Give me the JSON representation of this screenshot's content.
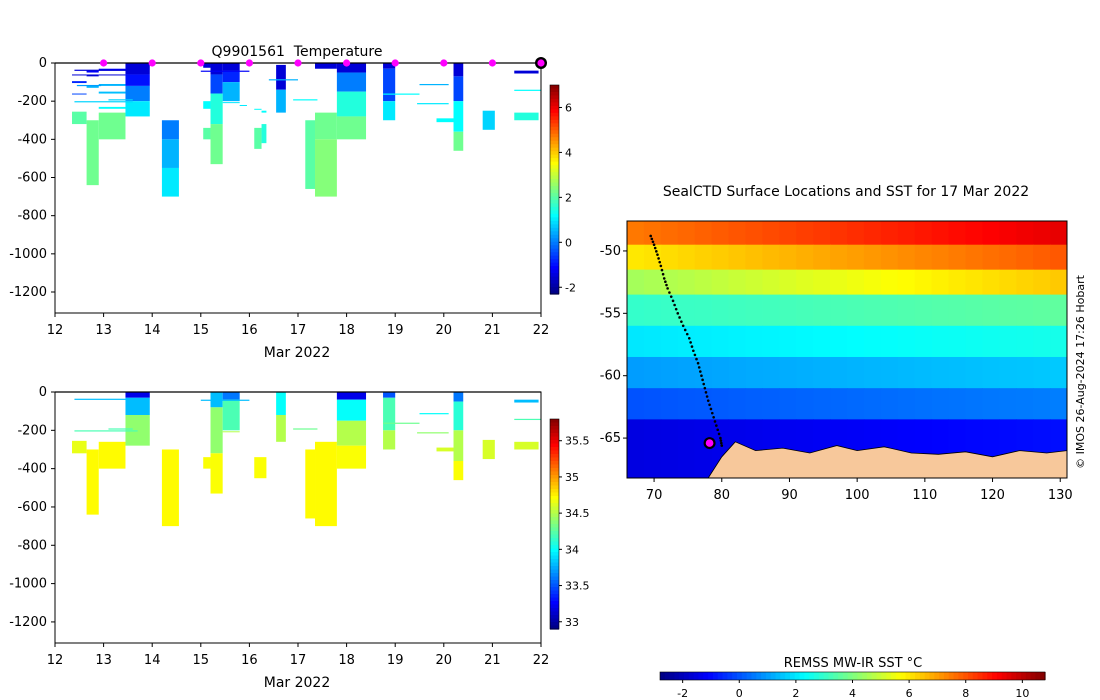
{
  "chart_data": [
    {
      "type": "heatmap",
      "title": "Q9901561  Temperature",
      "xlabel": "Mar 2022",
      "ylabel": "",
      "x_ticks": [
        12,
        13,
        14,
        15,
        16,
        17,
        18,
        19,
        20,
        21,
        22
      ],
      "y_ticks": [
        0,
        -200,
        -400,
        -600,
        -800,
        -1000,
        -1200
      ],
      "xlim": [
        12,
        22
      ],
      "ylim": [
        -1310,
        0
      ],
      "colorbar": {
        "ticks": [
          -2,
          0,
          2,
          4,
          6
        ],
        "range": [
          -2.3,
          7.0
        ],
        "colormap": "jet"
      },
      "surface_markers_day": [
        13,
        14,
        15,
        16,
        17,
        18,
        19,
        20,
        21
      ],
      "latest_marker_day": 22,
      "profiles": [
        {
          "x0": 12.35,
          "x1": 12.65,
          "segments": [
            [
              60,
              65,
              -1.5
            ],
            [
              95,
              105,
              -0.8
            ],
            [
              160,
              165,
              -0.5
            ],
            [
              255,
              320,
              2.0
            ]
          ]
        },
        {
          "x0": 12.65,
          "x1": 12.9,
          "segments": [
            [
              40,
              50,
              -1.2
            ],
            [
              60,
              70,
              -1.5
            ],
            [
              120,
              130,
              0.5
            ],
            [
              300,
              640,
              2.2
            ]
          ]
        },
        {
          "x0": 12.9,
          "x1": 13.45,
          "segments": [
            [
              30,
              40,
              -1.2
            ],
            [
              60,
              65,
              -1.5
            ],
            [
              110,
              120,
              0.5
            ],
            [
              150,
              160,
              0.6
            ],
            [
              230,
              240,
              1.2
            ],
            [
              260,
              400,
              2.2
            ]
          ]
        },
        {
          "x0": 13.45,
          "x1": 13.95,
          "segments": [
            [
              0,
              60,
              -1.5
            ],
            [
              60,
              120,
              -1.0
            ],
            [
              120,
              200,
              0.0
            ],
            [
              200,
              280,
              1.0
            ]
          ]
        },
        {
          "x0": 14.2,
          "x1": 14.55,
          "segments": [
            [
              300,
              400,
              0.0
            ],
            [
              400,
              550,
              0.5
            ],
            [
              550,
              700,
              1.0
            ]
          ]
        },
        {
          "x0": 15.05,
          "x1": 15.2,
          "segments": [
            [
              0,
              25,
              -1.5
            ],
            [
              200,
              240,
              1.2
            ],
            [
              340,
              400,
              2.0
            ]
          ]
        },
        {
          "x0": 15.2,
          "x1": 15.45,
          "segments": [
            [
              0,
              60,
              -1.5
            ],
            [
              60,
              160,
              -0.5
            ],
            [
              160,
              320,
              1.5
            ],
            [
              320,
              530,
              2.2
            ]
          ]
        },
        {
          "x0": 15.45,
          "x1": 15.8,
          "segments": [
            [
              0,
              40,
              -1.5
            ],
            [
              40,
              100,
              -0.8
            ],
            [
              100,
              200,
              0.5
            ],
            [
              205,
              210,
              1.0
            ]
          ]
        },
        {
          "x0": 15.8,
          "x1": 15.95,
          "segments": [
            [
              220,
              225,
              1.0
            ]
          ]
        },
        {
          "x0": 16.1,
          "x1": 16.25,
          "segments": [
            [
              240,
              245,
              1.2
            ],
            [
              340,
              450,
              2.0
            ]
          ]
        },
        {
          "x0": 16.25,
          "x1": 16.35,
          "segments": [
            [
              250,
              260,
              1.2
            ],
            [
              320,
              420,
              1.5
            ]
          ]
        },
        {
          "x0": 16.55,
          "x1": 16.75,
          "segments": [
            [
              10,
              140,
              -1.5
            ],
            [
              140,
              260,
              0.5
            ]
          ]
        },
        {
          "x0": 17.15,
          "x1": 17.35,
          "segments": [
            [
              300,
              660,
              2.0
            ]
          ]
        },
        {
          "x0": 17.35,
          "x1": 17.8,
          "segments": [
            [
              0,
              30,
              -1.5
            ],
            [
              260,
              400,
              2.2
            ],
            [
              400,
              700,
              2.4
            ]
          ]
        },
        {
          "x0": 17.8,
          "x1": 18.4,
          "segments": [
            [
              0,
              50,
              -1.5
            ],
            [
              50,
              150,
              0.0
            ],
            [
              150,
              280,
              1.5
            ],
            [
              280,
              400,
              2.2
            ]
          ]
        },
        {
          "x0": 18.75,
          "x1": 19.0,
          "segments": [
            [
              0,
              30,
              -1.5
            ],
            [
              30,
              200,
              -0.5
            ],
            [
              200,
              300,
              1.0
            ]
          ]
        },
        {
          "x0": 19.85,
          "x1": 20.2,
          "segments": [
            [
              290,
              310,
              1.2
            ]
          ]
        },
        {
          "x0": 20.2,
          "x1": 20.4,
          "segments": [
            [
              0,
              70,
              -1.5
            ],
            [
              70,
              200,
              -0.5
            ],
            [
              200,
              360,
              1.2
            ],
            [
              360,
              460,
              2.2
            ]
          ]
        },
        {
          "x0": 20.8,
          "x1": 21.05,
          "segments": [
            [
              250,
              350,
              0.8
            ]
          ]
        },
        {
          "x0": 21.45,
          "x1": 21.95,
          "segments": [
            [
              40,
              55,
              -1.5
            ],
            [
              260,
              300,
              1.5
            ]
          ]
        }
      ],
      "trace_lines": [
        {
          "x0": 12.4,
          "x1": 13.6,
          "depth": 200,
          "value": 0.8
        },
        {
          "x0": 13.1,
          "x1": 13.6,
          "depth": 190,
          "value": 0.8
        },
        {
          "x0": 16.9,
          "x1": 17.4,
          "depth": 190,
          "value": 1.2
        },
        {
          "x0": 18.75,
          "x1": 19.5,
          "depth": 160,
          "value": 1.2
        },
        {
          "x0": 19.45,
          "x1": 20.1,
          "depth": 210,
          "value": 1.0
        },
        {
          "x0": 12.4,
          "x1": 13.7,
          "depth": 35,
          "value": -1.5
        },
        {
          "x0": 15.0,
          "x1": 16.0,
          "depth": 40,
          "value": -1.2
        },
        {
          "x0": 16.4,
          "x1": 17.0,
          "depth": 85,
          "value": 0.5
        },
        {
          "x0": 21.45,
          "x1": 22.0,
          "depth": 140,
          "value": 1.2
        },
        {
          "x0": 19.5,
          "x1": 20.1,
          "depth": 110,
          "value": 0.5
        },
        {
          "x0": 12.45,
          "x1": 12.95,
          "depth": 115,
          "value": 0.3
        }
      ]
    },
    {
      "type": "heatmap",
      "title": "",
      "xlabel": "Mar 2022",
      "ylabel": "",
      "x_ticks": [
        12,
        13,
        14,
        15,
        16,
        17,
        18,
        19,
        20,
        21,
        22
      ],
      "y_ticks": [
        0,
        -200,
        -400,
        -600,
        -800,
        -1000,
        -1200
      ],
      "xlim": [
        12,
        22
      ],
      "ylim": [
        -1310,
        0
      ],
      "colorbar": {
        "ticks": [
          33,
          33.5,
          34,
          34.5,
          35,
          35.5
        ],
        "range": [
          32.9,
          35.8
        ],
        "colormap": "jet"
      },
      "profiles": [
        {
          "x0": 12.35,
          "x1": 12.65,
          "segments": [
            [
              255,
              320,
              34.65
            ]
          ]
        },
        {
          "x0": 12.65,
          "x1": 12.9,
          "segments": [
            [
              300,
              640,
              34.72
            ]
          ]
        },
        {
          "x0": 12.9,
          "x1": 13.45,
          "segments": [
            [
              260,
              400,
              34.72
            ]
          ]
        },
        {
          "x0": 13.45,
          "x1": 13.95,
          "segments": [
            [
              0,
              30,
              33.2
            ],
            [
              30,
              120,
              33.8
            ],
            [
              120,
              280,
              34.4
            ]
          ]
        },
        {
          "x0": 14.2,
          "x1": 14.55,
          "segments": [
            [
              300,
              700,
              34.72
            ]
          ]
        },
        {
          "x0": 15.05,
          "x1": 15.2,
          "segments": [
            [
              340,
              400,
              34.7
            ]
          ]
        },
        {
          "x0": 15.2,
          "x1": 15.45,
          "segments": [
            [
              0,
              80,
              33.8
            ],
            [
              80,
              320,
              34.4
            ],
            [
              320,
              530,
              34.7
            ]
          ]
        },
        {
          "x0": 15.45,
          "x1": 15.8,
          "segments": [
            [
              0,
              40,
              33.6
            ],
            [
              40,
              200,
              34.2
            ],
            [
              205,
              210,
              34.5
            ]
          ]
        },
        {
          "x0": 16.1,
          "x1": 16.35,
          "segments": [
            [
              340,
              450,
              34.7
            ]
          ]
        },
        {
          "x0": 16.55,
          "x1": 16.75,
          "segments": [
            [
              0,
              120,
              34.0
            ],
            [
              120,
              260,
              34.5
            ]
          ]
        },
        {
          "x0": 17.15,
          "x1": 17.35,
          "segments": [
            [
              300,
              660,
              34.72
            ]
          ]
        },
        {
          "x0": 17.35,
          "x1": 17.8,
          "segments": [
            [
              260,
              700,
              34.72
            ]
          ]
        },
        {
          "x0": 17.8,
          "x1": 18.4,
          "segments": [
            [
              0,
              40,
              33.2
            ],
            [
              40,
              150,
              34.0
            ],
            [
              150,
              280,
              34.5
            ],
            [
              280,
              400,
              34.7
            ]
          ]
        },
        {
          "x0": 18.75,
          "x1": 19.0,
          "segments": [
            [
              0,
              30,
              33.5
            ],
            [
              30,
              200,
              34.2
            ],
            [
              200,
              300,
              34.5
            ]
          ]
        },
        {
          "x0": 19.85,
          "x1": 20.2,
          "segments": [
            [
              290,
              310,
              34.6
            ]
          ]
        },
        {
          "x0": 20.2,
          "x1": 20.4,
          "segments": [
            [
              0,
              50,
              33.6
            ],
            [
              50,
              200,
              34.1
            ],
            [
              200,
              360,
              34.5
            ],
            [
              360,
              460,
              34.7
            ]
          ]
        },
        {
          "x0": 20.8,
          "x1": 21.05,
          "segments": [
            [
              250,
              350,
              34.6
            ]
          ]
        },
        {
          "x0": 21.45,
          "x1": 21.95,
          "segments": [
            [
              40,
              55,
              33.8
            ],
            [
              260,
              300,
              34.6
            ]
          ]
        }
      ],
      "trace_lines": [
        {
          "x0": 12.4,
          "x1": 13.7,
          "depth": 200,
          "value": 34.2
        },
        {
          "x0": 13.1,
          "x1": 13.6,
          "depth": 190,
          "value": 34.2
        },
        {
          "x0": 18.75,
          "x1": 19.5,
          "depth": 160,
          "value": 34.3
        },
        {
          "x0": 19.45,
          "x1": 20.1,
          "depth": 210,
          "value": 34.4
        },
        {
          "x0": 12.4,
          "x1": 13.7,
          "depth": 35,
          "value": 33.8
        },
        {
          "x0": 15.0,
          "x1": 16.0,
          "depth": 40,
          "value": 33.8
        },
        {
          "x0": 16.9,
          "x1": 17.4,
          "depth": 190,
          "value": 34.3
        },
        {
          "x0": 21.45,
          "x1": 22.0,
          "depth": 140,
          "value": 34.2
        },
        {
          "x0": 19.5,
          "x1": 20.1,
          "depth": 110,
          "value": 34.0
        }
      ]
    },
    {
      "type": "map",
      "title": "SealCTD Surface Locations and SST for 17 Mar 2022",
      "x_ticks": [
        70,
        80,
        90,
        100,
        110,
        120,
        130
      ],
      "y_ticks": [
        -50,
        -55,
        -60,
        -65
      ],
      "xlim": [
        66,
        131
      ],
      "ylim": [
        -68.2,
        -47.6
      ],
      "side_label": "© IMOS 26-Aug-2024 17:26 Hobart",
      "colorbar": {
        "label": "REMSS MW-IR SST °C",
        "ticks": [
          -2,
          0,
          2,
          4,
          6,
          8,
          10
        ],
        "range": [
          -2.8,
          10.8
        ],
        "colormap": "jet"
      },
      "land_color": "#f7c89b",
      "track": [
        [
          69.5,
          -48.8
        ],
        [
          70,
          -49.5
        ],
        [
          70.5,
          -50.3
        ],
        [
          71,
          -51.2
        ],
        [
          71.5,
          -52.2
        ],
        [
          72,
          -53.0
        ],
        [
          72.8,
          -54.0
        ],
        [
          73.5,
          -55.0
        ],
        [
          74.3,
          -56.0
        ],
        [
          75.2,
          -57.0
        ],
        [
          75.8,
          -58.0
        ],
        [
          76.5,
          -59.0
        ],
        [
          77.0,
          -60.0
        ],
        [
          77.5,
          -61.0
        ],
        [
          78.0,
          -62.0
        ],
        [
          78.6,
          -63.0
        ],
        [
          79.2,
          -64.0
        ],
        [
          79.8,
          -65.0
        ],
        [
          80.0,
          -65.6
        ]
      ],
      "current_position": [
        78.2,
        -65.4
      ],
      "sst_bands": [
        {
          "lat_top": -47.6,
          "lat_bottom": -49.5,
          "value": 7.5
        },
        {
          "lat_top": -49.5,
          "lat_bottom": -51.5,
          "value": 6.0
        },
        {
          "lat_top": -51.5,
          "lat_bottom": -53.5,
          "value": 4.5
        },
        {
          "lat_top": -53.5,
          "lat_bottom": -56.0,
          "value": 3.0
        },
        {
          "lat_top": -56.0,
          "lat_bottom": -58.5,
          "value": 2.0
        },
        {
          "lat_top": -58.5,
          "lat_bottom": -61.0,
          "value": 1.0
        },
        {
          "lat_top": -61.0,
          "lat_bottom": -63.5,
          "value": 0.0
        },
        {
          "lat_top": -63.5,
          "lat_bottom": -68.2,
          "value": -1.5
        }
      ],
      "land": [
        [
          66,
          -68.2
        ],
        [
          78,
          -68.2
        ],
        [
          80,
          -66.5
        ],
        [
          82,
          -65.3
        ],
        [
          85,
          -66.0
        ],
        [
          89,
          -65.8
        ],
        [
          93,
          -66.2
        ],
        [
          97,
          -65.6
        ],
        [
          100,
          -66.0
        ],
        [
          104,
          -65.7
        ],
        [
          108,
          -66.2
        ],
        [
          112,
          -66.3
        ],
        [
          116,
          -66.1
        ],
        [
          120,
          -66.5
        ],
        [
          124,
          -66.0
        ],
        [
          128,
          -66.2
        ],
        [
          131,
          -66.0
        ],
        [
          131,
          -68.2
        ]
      ]
    }
  ]
}
